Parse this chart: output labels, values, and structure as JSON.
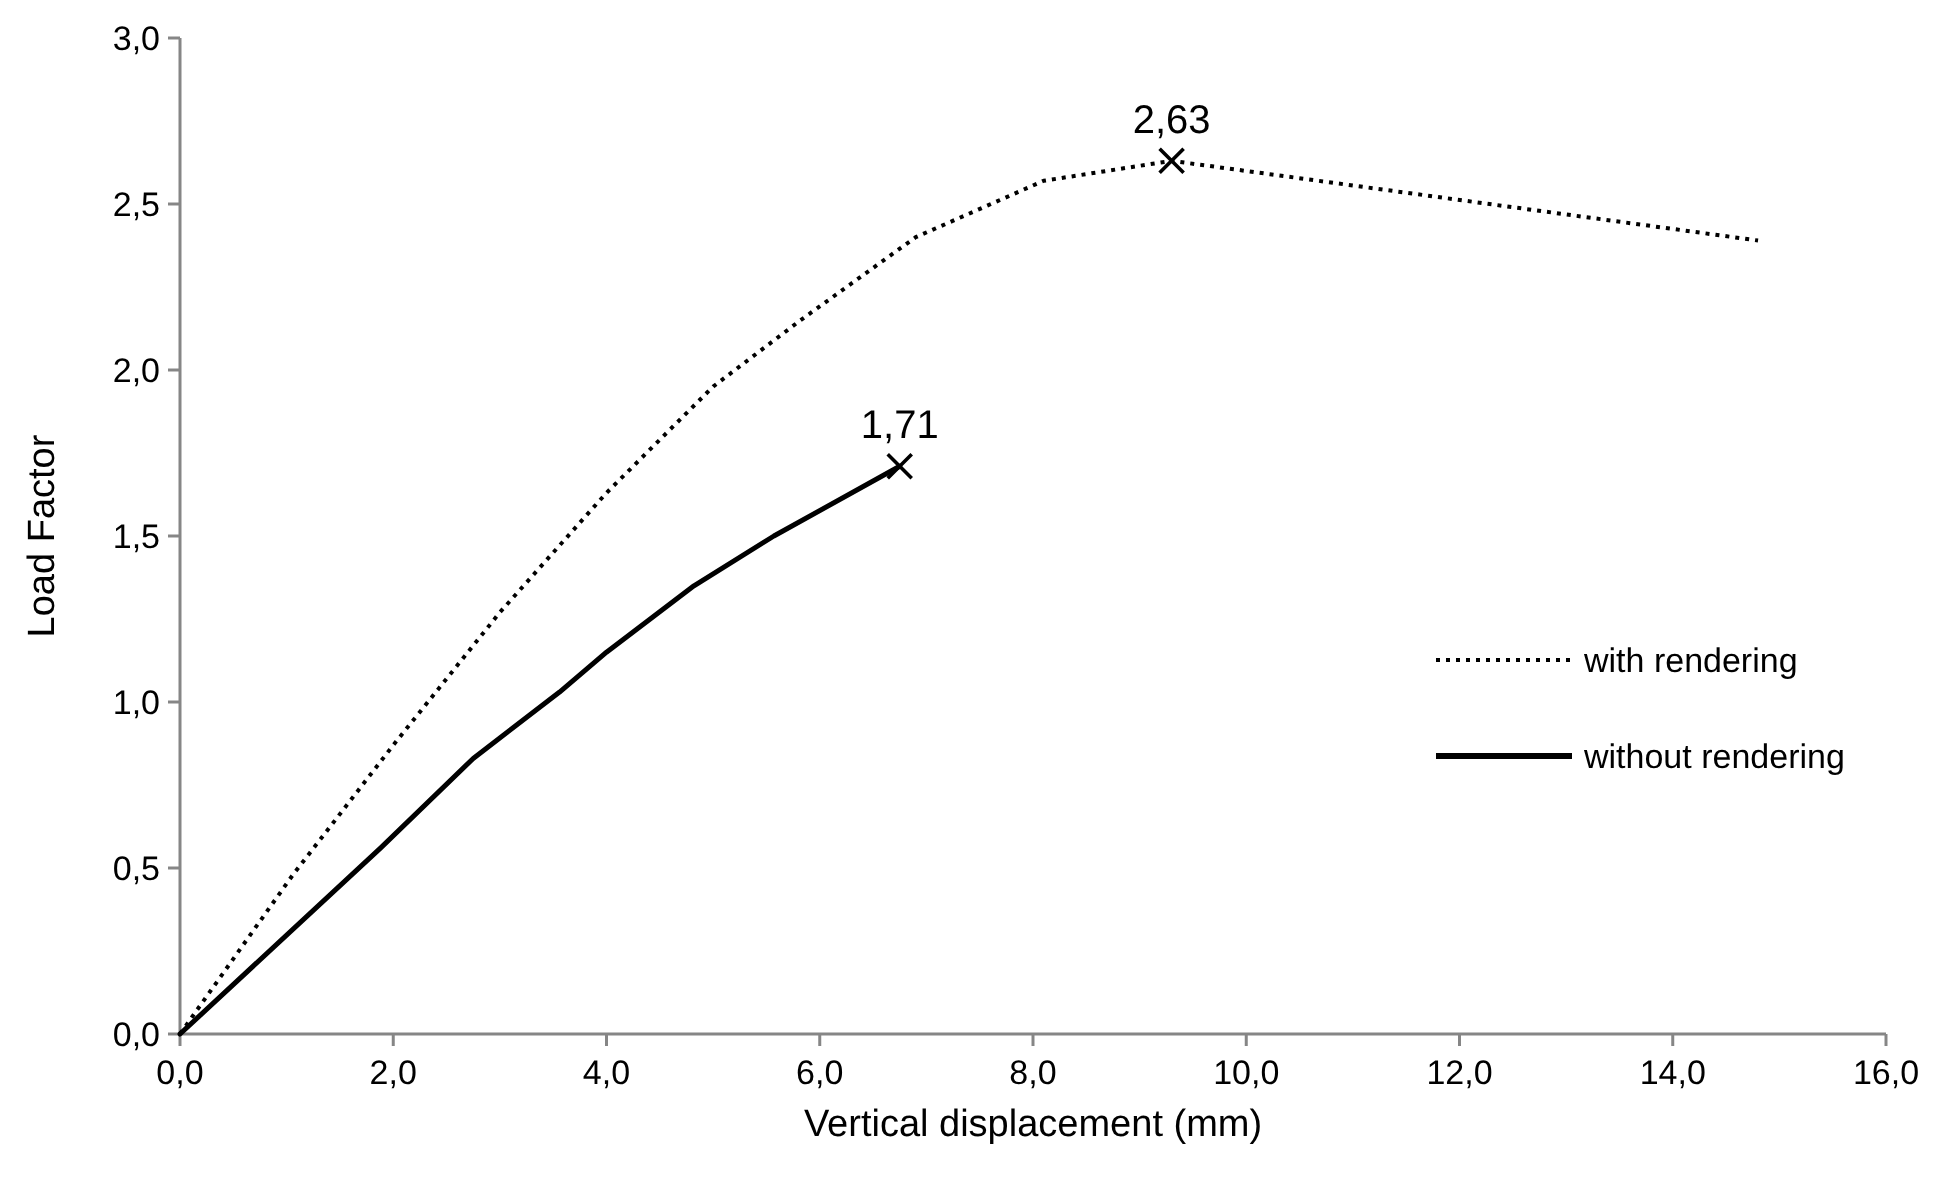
{
  "chart_data": {
    "type": "line",
    "xlabel": "Vertical displacement (mm)",
    "ylabel": "Load Factor",
    "xlim": [
      0,
      16
    ],
    "ylim": [
      0,
      3
    ],
    "xticks": [
      {
        "value": 0,
        "label": "0,0"
      },
      {
        "value": 2,
        "label": "2,0"
      },
      {
        "value": 4,
        "label": "4,0"
      },
      {
        "value": 6,
        "label": "6,0"
      },
      {
        "value": 8,
        "label": "8,0"
      },
      {
        "value": 10,
        "label": "10,0"
      },
      {
        "value": 12,
        "label": "12,0"
      },
      {
        "value": 14,
        "label": "14,0"
      },
      {
        "value": 16,
        "label": "16,0"
      }
    ],
    "yticks": [
      {
        "value": 0,
        "label": "0,0"
      },
      {
        "value": 0.5,
        "label": "0,5"
      },
      {
        "value": 1,
        "label": "1,0"
      },
      {
        "value": 1.5,
        "label": "1,5"
      },
      {
        "value": 2,
        "label": "2,0"
      },
      {
        "value": 2.5,
        "label": "2,5"
      },
      {
        "value": 3,
        "label": "3,0"
      }
    ],
    "grid": false,
    "legend": "right",
    "series": [
      {
        "name": "with rendering",
        "color": "#000000",
        "line_style": "dotted",
        "x": [
          0,
          1.06,
          2.0,
          3.0,
          4.0,
          5.0,
          5.82,
          6.9,
          8.1,
          9.3,
          14.8
        ],
        "values": [
          0,
          0.48,
          0.87,
          1.27,
          1.63,
          1.95,
          2.15,
          2.4,
          2.57,
          2.63,
          2.39
        ]
      },
      {
        "name": "without rendering",
        "color": "#000000",
        "line_style": "solid",
        "x": [
          0,
          1.88,
          2.75,
          3.56,
          4.0,
          4.82,
          5.57,
          6.75
        ],
        "values": [
          0,
          0.56,
          0.83,
          1.03,
          1.15,
          1.35,
          1.5,
          1.71
        ]
      },
      {
        "type": "scatter",
        "marker": "cross",
        "color": "#000000",
        "x": [
          9.3
        ],
        "values": [
          2.63
        ],
        "value_labels": [
          "2,63"
        ]
      },
      {
        "type": "scatter",
        "marker": "cross",
        "color": "#000000",
        "x": [
          6.75
        ],
        "values": [
          1.71
        ],
        "value_labels": [
          "1,71"
        ]
      }
    ]
  }
}
